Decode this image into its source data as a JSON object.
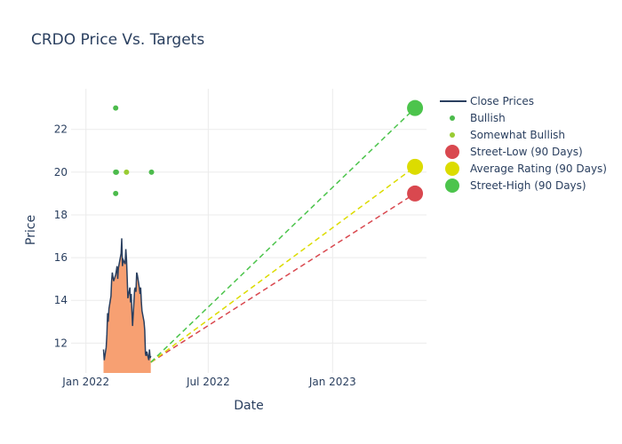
{
  "chart_data": {
    "type": "line",
    "title": "CRDO Price Vs. Targets",
    "xlabel": "Date",
    "ylabel": "Price",
    "x_ticks": [
      {
        "label": "Jan 2022",
        "date": "2022-01-01"
      },
      {
        "label": "Jul 2022",
        "date": "2022-07-01"
      },
      {
        "label": "Jan 2023",
        "date": "2023-01-01"
      }
    ],
    "y_ticks": [
      12,
      14,
      16,
      18,
      20,
      22
    ],
    "xlim": [
      "2021-12-10",
      "2023-05-20"
    ],
    "ylim": [
      10.6,
      23.9
    ],
    "grid": true,
    "legend_position": "right",
    "colors": {
      "close_line": "#2a3f5f",
      "close_fill": "#f7a072",
      "bullish": "#4cbb4c",
      "somewhat_bullish": "#99cc33",
      "street_low": "#d9484f",
      "average": "#dcdc00",
      "street_high": "#4cc44c"
    },
    "series": [
      {
        "name": "Close Prices",
        "type": "line",
        "points": [
          [
            "2022-01-27",
            11.7
          ],
          [
            "2022-01-28",
            11.2
          ],
          [
            "2022-01-31",
            11.8
          ],
          [
            "2022-02-01",
            12.4
          ],
          [
            "2022-02-02",
            13.4
          ],
          [
            "2022-02-03",
            13.0
          ],
          [
            "2022-02-04",
            13.6
          ],
          [
            "2022-02-07",
            14.2
          ],
          [
            "2022-02-08",
            14.9
          ],
          [
            "2022-02-09",
            15.3
          ],
          [
            "2022-02-10",
            15.1
          ],
          [
            "2022-02-11",
            14.9
          ],
          [
            "2022-02-14",
            15.2
          ],
          [
            "2022-02-15",
            15.4
          ],
          [
            "2022-02-16",
            15.6
          ],
          [
            "2022-02-17",
            15.0
          ],
          [
            "2022-02-18",
            15.5
          ],
          [
            "2022-02-22",
            16.2
          ],
          [
            "2022-02-23",
            16.9
          ],
          [
            "2022-02-24",
            15.6
          ],
          [
            "2022-02-25",
            15.9
          ],
          [
            "2022-02-28",
            15.7
          ],
          [
            "2022-03-01",
            16.4
          ],
          [
            "2022-03-02",
            15.9
          ],
          [
            "2022-03-03",
            15.1
          ],
          [
            "2022-03-04",
            14.1
          ],
          [
            "2022-03-07",
            14.6
          ],
          [
            "2022-03-08",
            13.9
          ],
          [
            "2022-03-09",
            14.3
          ],
          [
            "2022-03-10",
            13.5
          ],
          [
            "2022-03-11",
            12.8
          ],
          [
            "2022-03-14",
            14.5
          ],
          [
            "2022-03-15",
            14.6
          ],
          [
            "2022-03-16",
            14.4
          ],
          [
            "2022-03-17",
            15.3
          ],
          [
            "2022-03-18",
            15.2
          ],
          [
            "2022-03-21",
            14.6
          ],
          [
            "2022-03-22",
            14.3
          ],
          [
            "2022-03-23",
            14.6
          ],
          [
            "2022-03-24",
            13.9
          ],
          [
            "2022-03-25",
            13.5
          ],
          [
            "2022-03-28",
            13.0
          ],
          [
            "2022-03-29",
            12.6
          ],
          [
            "2022-03-30",
            11.5
          ],
          [
            "2022-03-31",
            11.4
          ],
          [
            "2022-04-01",
            11.6
          ],
          [
            "2022-04-04",
            11.2
          ],
          [
            "2022-04-05",
            11.7
          ],
          [
            "2022-04-06",
            11.3
          ],
          [
            "2022-04-07",
            11.4
          ]
        ]
      },
      {
        "name": "Bullish",
        "type": "scatter",
        "points": [
          [
            "2022-02-14",
            23
          ],
          [
            "2022-02-14",
            20
          ],
          [
            "2022-02-15",
            20
          ],
          [
            "2022-02-14",
            19
          ],
          [
            "2022-04-08",
            20
          ]
        ]
      },
      {
        "name": "Somewhat Bullish",
        "type": "scatter",
        "points": [
          [
            "2022-03-02",
            20
          ]
        ]
      },
      {
        "name": "Street-Low (90 Days)",
        "type": "projection",
        "from": [
          "2022-04-07",
          11.1
        ],
        "to": [
          "2023-05-03",
          19
        ]
      },
      {
        "name": "Average Rating (90 Days)",
        "type": "projection",
        "from": [
          "2022-04-07",
          11.1
        ],
        "to": [
          "2023-05-03",
          20.25
        ]
      },
      {
        "name": "Street-High (90 Days)",
        "type": "projection",
        "from": [
          "2022-04-07",
          11.1
        ],
        "to": [
          "2023-05-03",
          23
        ]
      }
    ]
  }
}
